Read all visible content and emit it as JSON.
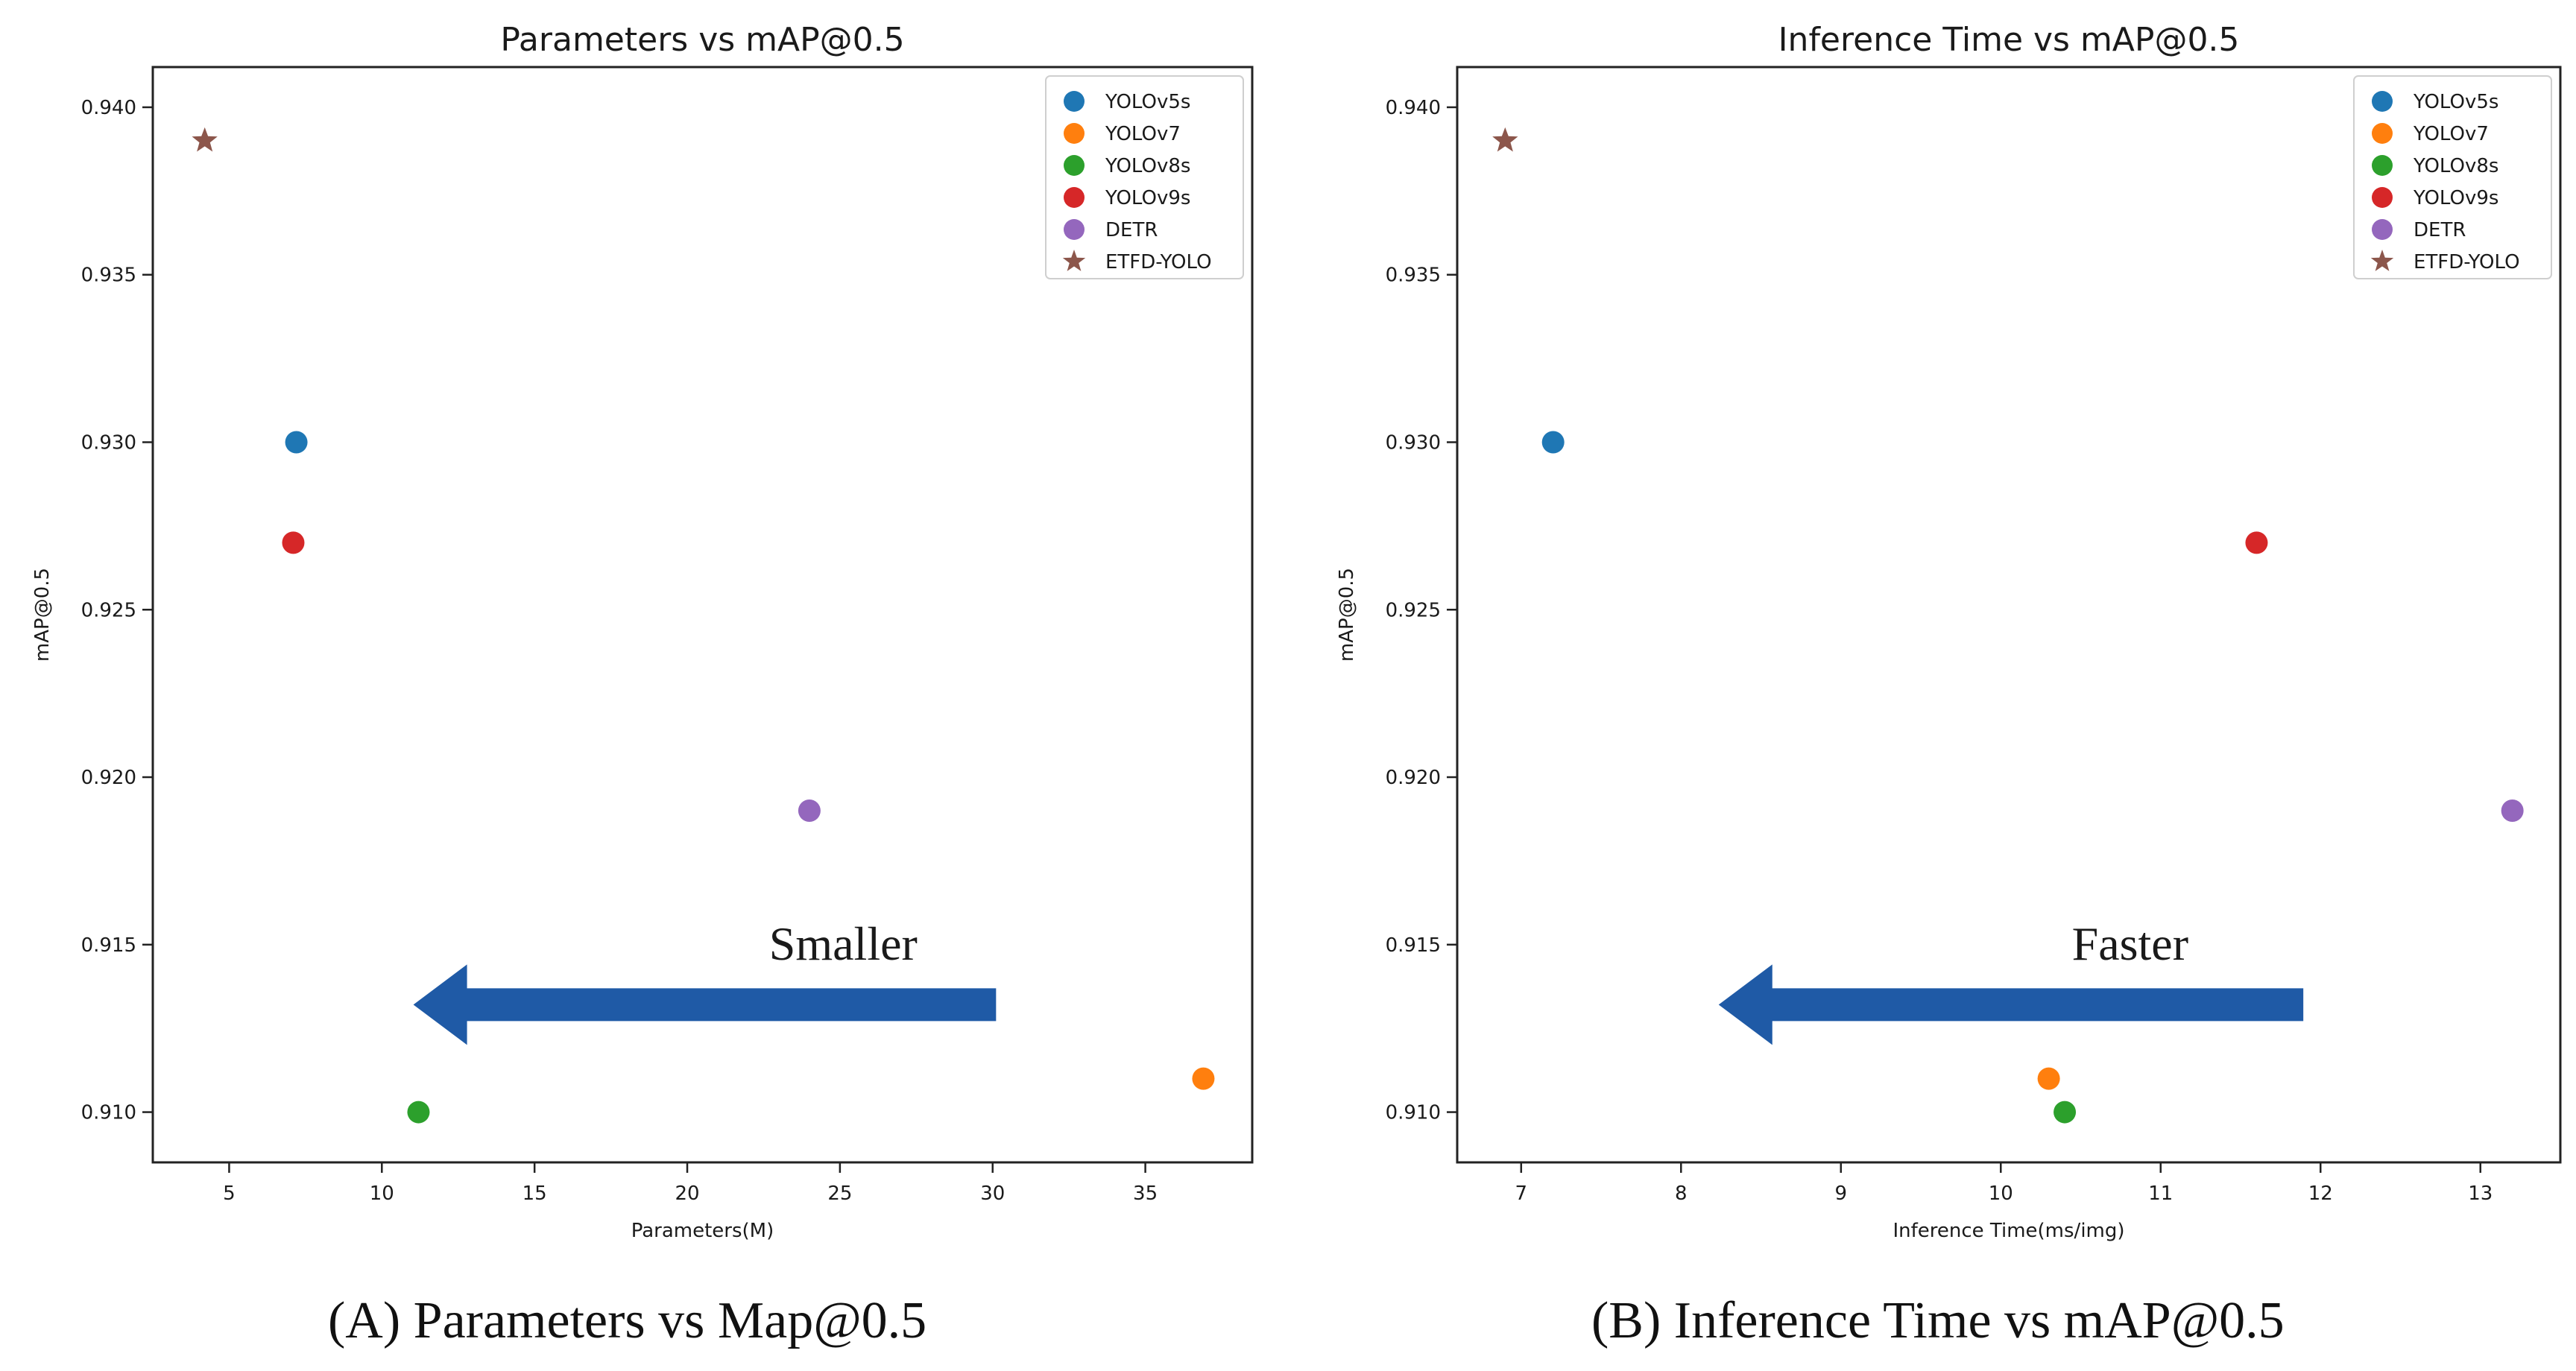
{
  "chart_data": [
    {
      "type": "scatter",
      "title": "Parameters vs mAP@0.5",
      "xlabel": "Parameters(M)",
      "ylabel": "mAP@0.5",
      "xlim": [
        2.5,
        38.5
      ],
      "ylim": [
        0.9085,
        0.9412
      ],
      "xticks": [
        "5",
        "10",
        "15",
        "20",
        "25",
        "30",
        "35"
      ],
      "yticks": [
        "0.910",
        "0.915",
        "0.920",
        "0.925",
        "0.930",
        "0.935",
        "0.940"
      ],
      "legend_position": "top-right",
      "annotation": {
        "text": "Smaller",
        "arrow_direction": "left"
      },
      "series": [
        {
          "name": "YOLOv5s",
          "color": "#1f77b4",
          "marker": "circle",
          "x": 7.2,
          "y": 0.93
        },
        {
          "name": "YOLOv7",
          "color": "#ff7f0e",
          "marker": "circle",
          "x": 36.9,
          "y": 0.911
        },
        {
          "name": "YOLOv8s",
          "color": "#2ca02c",
          "marker": "circle",
          "x": 11.2,
          "y": 0.91
        },
        {
          "name": "YOLOv9s",
          "color": "#d62728",
          "marker": "circle",
          "x": 7.1,
          "y": 0.927
        },
        {
          "name": "DETR",
          "color": "#9467bd",
          "marker": "circle",
          "x": 24.0,
          "y": 0.919
        },
        {
          "name": "ETFD-YOLO",
          "color": "#8c564b",
          "marker": "star",
          "x": 4.2,
          "y": 0.939
        }
      ]
    },
    {
      "type": "scatter",
      "title": "Inference Time vs mAP@0.5",
      "xlabel": "Inference Time(ms/img)",
      "ylabel": "mAP@0.5",
      "xlim": [
        6.6,
        13.5
      ],
      "ylim": [
        0.9085,
        0.9412
      ],
      "xticks": [
        "7",
        "8",
        "9",
        "10",
        "11",
        "12",
        "13"
      ],
      "yticks": [
        "0.910",
        "0.915",
        "0.920",
        "0.925",
        "0.930",
        "0.935",
        "0.940"
      ],
      "legend_position": "top-right",
      "annotation": {
        "text": "Faster",
        "arrow_direction": "left"
      },
      "series": [
        {
          "name": "YOLOv5s",
          "color": "#1f77b4",
          "marker": "circle",
          "x": 7.2,
          "y": 0.93
        },
        {
          "name": "YOLOv7",
          "color": "#ff7f0e",
          "marker": "circle",
          "x": 10.3,
          "y": 0.911
        },
        {
          "name": "YOLOv8s",
          "color": "#2ca02c",
          "marker": "circle",
          "x": 10.4,
          "y": 0.91
        },
        {
          "name": "YOLOv9s",
          "color": "#d62728",
          "marker": "circle",
          "x": 11.6,
          "y": 0.927
        },
        {
          "name": "DETR",
          "color": "#9467bd",
          "marker": "circle",
          "x": 13.2,
          "y": 0.919
        },
        {
          "name": "ETFD-YOLO",
          "color": "#8c564b",
          "marker": "star",
          "x": 6.9,
          "y": 0.939
        }
      ]
    }
  ],
  "captions": {
    "a": "(A) Parameters vs Map@0.5",
    "b": "(B) Inference Time vs mAP@0.5"
  },
  "colors": {
    "arrow": "#1f5aa6"
  }
}
